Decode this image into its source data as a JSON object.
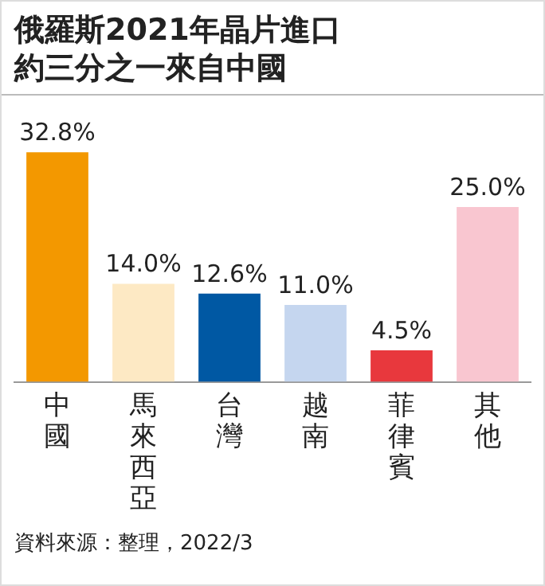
{
  "chart_data": {
    "type": "bar",
    "title": "俄羅斯2021年晶片進口約三分之一來自中國",
    "categories": [
      "中國",
      "馬來西亞",
      "台灣",
      "越南",
      "菲律賓",
      "其他"
    ],
    "values": [
      32.8,
      14.0,
      12.6,
      11.0,
      4.5,
      25.0
    ],
    "colors": [
      "#f39800",
      "#fde9c4",
      "#0058a3",
      "#c5d6ef",
      "#e8383d",
      "#f9c6d0"
    ],
    "value_labels": [
      "32.8%",
      "14.0%",
      "12.6%",
      "11.0%",
      "4.5%",
      "25.0%"
    ],
    "annotations": [
      "資料來源：整理，2022/3"
    ],
    "grid": false,
    "legend": false
  }
}
